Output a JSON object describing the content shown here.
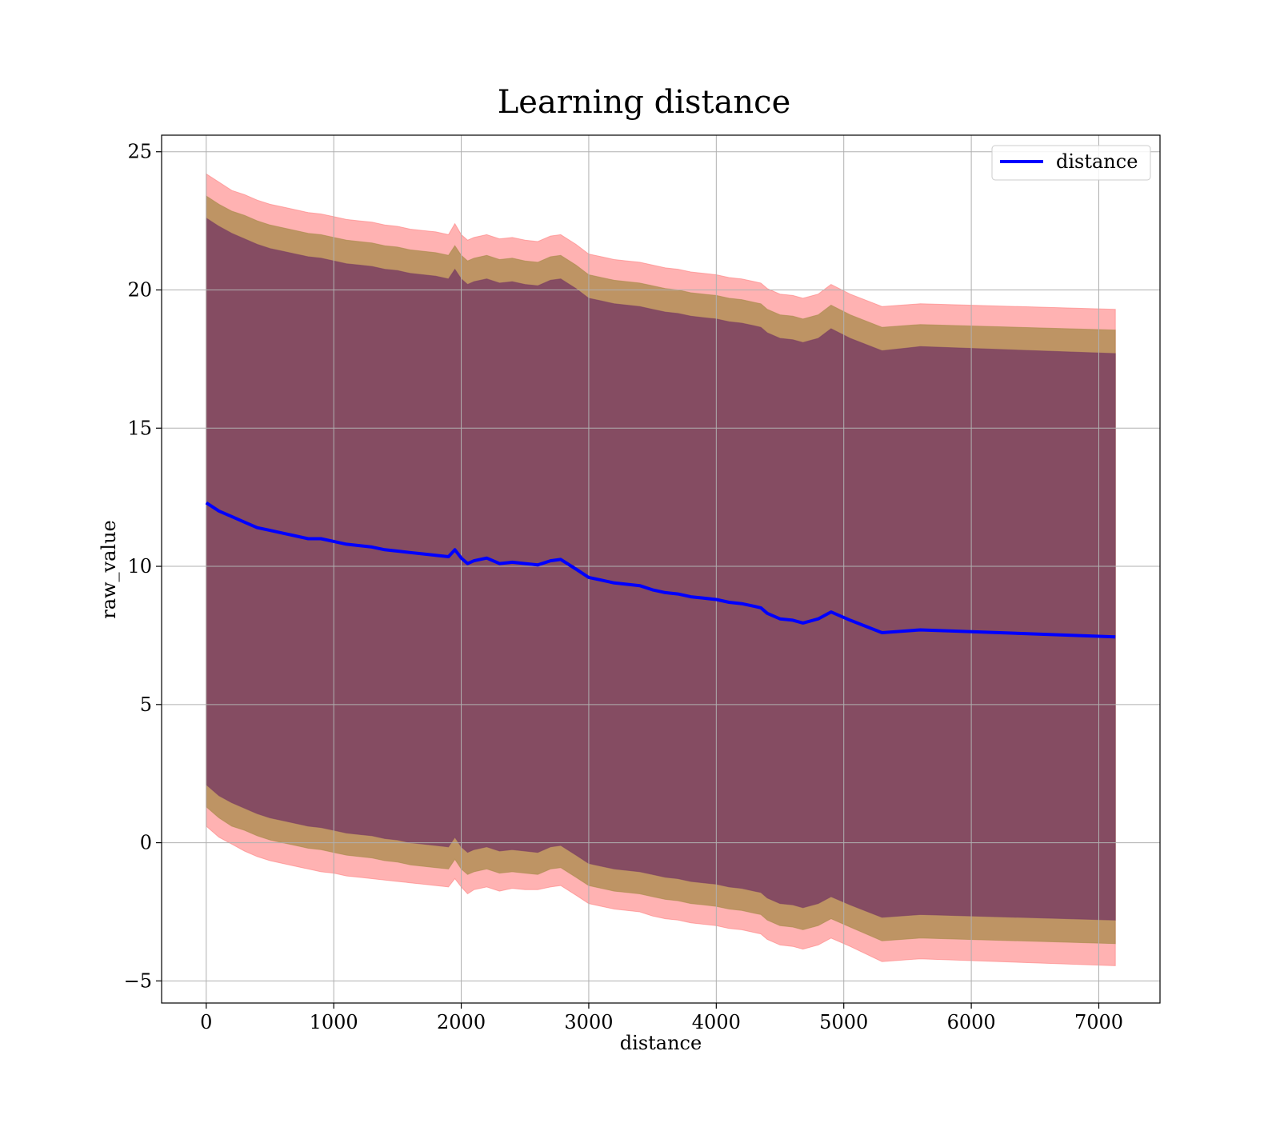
{
  "chart_data": {
    "type": "line",
    "title": "Learning distance",
    "xlabel": "distance",
    "ylabel": "raw_value",
    "xlim": [
      -350,
      7480
    ],
    "ylim": [
      -5.8,
      25.6
    ],
    "xticks": [
      0,
      1000,
      2000,
      3000,
      4000,
      5000,
      6000,
      7000
    ],
    "yticks": [
      -5,
      0,
      5,
      10,
      15,
      20,
      25
    ],
    "xtick_labels": [
      "0",
      "1000",
      "2000",
      "3000",
      "4000",
      "5000",
      "6000",
      "7000"
    ],
    "ytick_labels": [
      "−5",
      "0",
      "5",
      "10",
      "15",
      "20",
      "25"
    ],
    "grid": true,
    "legend": {
      "position": "top-right",
      "entries": [
        "distance"
      ]
    },
    "colors": {
      "line": "#0000ff",
      "band_outer": "#ff7f7f",
      "band_middle": "#a88a4a",
      "band_inner": "#7b3f62",
      "grid": "#b0b0b0"
    },
    "series": [
      {
        "name": "distance",
        "x": [
          0,
          100,
          200,
          300,
          400,
          500,
          600,
          700,
          800,
          900,
          1000,
          1100,
          1200,
          1300,
          1400,
          1500,
          1600,
          1700,
          1800,
          1900,
          1950,
          2000,
          2050,
          2100,
          2200,
          2300,
          2400,
          2500,
          2600,
          2700,
          2780,
          2900,
          3000,
          3100,
          3200,
          3300,
          3400,
          3500,
          3600,
          3700,
          3800,
          3900,
          4000,
          4100,
          4200,
          4300,
          4350,
          4400,
          4500,
          4600,
          4680,
          4800,
          4900,
          5050,
          5300,
          5600,
          7130
        ],
        "y": [
          12.3,
          12.0,
          11.8,
          11.6,
          11.4,
          11.3,
          11.2,
          11.1,
          11.0,
          11.0,
          10.9,
          10.8,
          10.75,
          10.7,
          10.6,
          10.55,
          10.5,
          10.45,
          10.4,
          10.35,
          10.6,
          10.3,
          10.1,
          10.2,
          10.3,
          10.1,
          10.15,
          10.1,
          10.05,
          10.2,
          10.25,
          9.9,
          9.6,
          9.5,
          9.4,
          9.35,
          9.3,
          9.15,
          9.05,
          9.0,
          8.9,
          8.85,
          8.8,
          8.7,
          8.65,
          8.55,
          8.5,
          8.3,
          8.1,
          8.05,
          7.95,
          8.1,
          8.35,
          8.05,
          7.6,
          7.7,
          7.45
        ],
        "lower_outer": [
          0.6,
          0.2,
          -0.05,
          -0.3,
          -0.5,
          -0.65,
          -0.75,
          -0.85,
          -0.95,
          -1.05,
          -1.1,
          -1.2,
          -1.25,
          -1.3,
          -1.35,
          -1.4,
          -1.45,
          -1.5,
          -1.55,
          -1.6,
          -1.3,
          -1.6,
          -1.85,
          -1.7,
          -1.6,
          -1.75,
          -1.65,
          -1.7,
          -1.7,
          -1.6,
          -1.55,
          -1.9,
          -2.2,
          -2.3,
          -2.4,
          -2.45,
          -2.5,
          -2.65,
          -2.75,
          -2.8,
          -2.9,
          -2.95,
          -3.0,
          -3.1,
          -3.15,
          -3.25,
          -3.3,
          -3.5,
          -3.7,
          -3.75,
          -3.85,
          -3.7,
          -3.45,
          -3.75,
          -4.3,
          -4.2,
          -4.45
        ],
        "upper_outer": [
          24.2,
          23.9,
          23.6,
          23.45,
          23.25,
          23.1,
          23.0,
          22.9,
          22.8,
          22.75,
          22.65,
          22.55,
          22.5,
          22.45,
          22.35,
          22.3,
          22.2,
          22.15,
          22.1,
          22.0,
          22.4,
          22.0,
          21.8,
          21.9,
          22.0,
          21.85,
          21.9,
          21.8,
          21.75,
          21.95,
          22.0,
          21.65,
          21.3,
          21.2,
          21.1,
          21.05,
          21.0,
          20.9,
          20.8,
          20.75,
          20.65,
          20.6,
          20.55,
          20.45,
          20.4,
          20.3,
          20.25,
          20.05,
          19.85,
          19.8,
          19.7,
          19.85,
          20.2,
          19.85,
          19.4,
          19.5,
          19.3
        ],
        "lower_middle": [
          1.3,
          0.9,
          0.6,
          0.45,
          0.25,
          0.1,
          0.0,
          -0.1,
          -0.2,
          -0.25,
          -0.35,
          -0.45,
          -0.5,
          -0.55,
          -0.65,
          -0.7,
          -0.8,
          -0.85,
          -0.9,
          -0.95,
          -0.6,
          -0.95,
          -1.15,
          -1.05,
          -0.95,
          -1.1,
          -1.05,
          -1.1,
          -1.15,
          -0.95,
          -0.9,
          -1.25,
          -1.55,
          -1.65,
          -1.75,
          -1.8,
          -1.85,
          -1.95,
          -2.05,
          -2.1,
          -2.2,
          -2.25,
          -2.3,
          -2.4,
          -2.45,
          -2.55,
          -2.6,
          -2.8,
          -3.0,
          -3.05,
          -3.15,
          -3.0,
          -2.75,
          -3.05,
          -3.55,
          -3.45,
          -3.65
        ],
        "upper_middle": [
          23.4,
          23.1,
          22.85,
          22.7,
          22.5,
          22.35,
          22.25,
          22.15,
          22.05,
          22.0,
          21.9,
          21.8,
          21.75,
          21.7,
          21.6,
          21.55,
          21.45,
          21.4,
          21.35,
          21.25,
          21.6,
          21.25,
          21.05,
          21.15,
          21.25,
          21.1,
          21.15,
          21.05,
          21.0,
          21.2,
          21.25,
          20.9,
          20.55,
          20.45,
          20.35,
          20.3,
          20.25,
          20.15,
          20.05,
          20.0,
          19.9,
          19.85,
          19.8,
          19.7,
          19.65,
          19.55,
          19.5,
          19.3,
          19.1,
          19.05,
          18.95,
          19.1,
          19.45,
          19.1,
          18.65,
          18.75,
          18.55
        ],
        "lower_inner": [
          2.1,
          1.7,
          1.45,
          1.25,
          1.05,
          0.9,
          0.8,
          0.7,
          0.6,
          0.55,
          0.45,
          0.35,
          0.3,
          0.25,
          0.15,
          0.1,
          0.0,
          -0.05,
          -0.1,
          -0.15,
          0.2,
          -0.15,
          -0.35,
          -0.25,
          -0.15,
          -0.3,
          -0.25,
          -0.3,
          -0.35,
          -0.15,
          -0.1,
          -0.45,
          -0.75,
          -0.85,
          -0.95,
          -1.0,
          -1.05,
          -1.15,
          -1.25,
          -1.3,
          -1.4,
          -1.45,
          -1.5,
          -1.6,
          -1.65,
          -1.75,
          -1.8,
          -2.0,
          -2.2,
          -2.25,
          -2.35,
          -2.2,
          -1.95,
          -2.25,
          -2.7,
          -2.6,
          -2.8
        ],
        "upper_inner": [
          22.6,
          22.3,
          22.05,
          21.85,
          21.65,
          21.5,
          21.4,
          21.3,
          21.2,
          21.15,
          21.05,
          20.95,
          20.9,
          20.85,
          20.75,
          20.7,
          20.6,
          20.55,
          20.5,
          20.4,
          20.75,
          20.4,
          20.2,
          20.3,
          20.4,
          20.25,
          20.3,
          20.2,
          20.15,
          20.35,
          20.4,
          20.05,
          19.7,
          19.6,
          19.5,
          19.45,
          19.4,
          19.3,
          19.2,
          19.15,
          19.05,
          19.0,
          18.95,
          18.85,
          18.8,
          18.7,
          18.65,
          18.45,
          18.25,
          18.2,
          18.1,
          18.25,
          18.6,
          18.25,
          17.8,
          17.95,
          17.7
        ]
      }
    ]
  }
}
